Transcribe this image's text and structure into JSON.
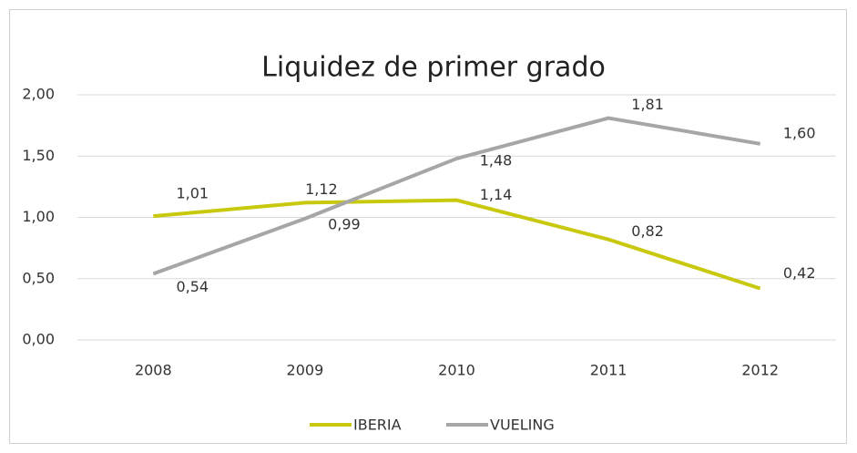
{
  "chart_data": {
    "type": "line",
    "title": "Liquidez de primer grado",
    "categories": [
      "2008",
      "2009",
      "2010",
      "2011",
      "2012"
    ],
    "series": [
      {
        "name": "IBERIA",
        "color": "#c8c80f",
        "values": [
          1.01,
          1.12,
          1.14,
          0.82,
          0.42
        ],
        "value_labels": [
          "1,01",
          "1,12",
          "1,14",
          "0,82",
          "0,42"
        ]
      },
      {
        "name": "VUELING",
        "color": "#a6a6a6",
        "values": [
          0.54,
          0.99,
          1.48,
          1.81,
          1.6
        ],
        "value_labels": [
          "0,54",
          "0,99",
          "1,48",
          "1,81",
          "1,60"
        ]
      }
    ],
    "ylim": [
      0,
      2
    ],
    "yticks": [
      {
        "value": 0,
        "label": "0,00"
      },
      {
        "value": 0.5,
        "label": "0,50"
      },
      {
        "value": 1,
        "label": "1,00"
      },
      {
        "value": 1.5,
        "label": "1,50"
      },
      {
        "value": 2,
        "label": "2,00"
      }
    ],
    "grid": true,
    "legend": "bottom"
  }
}
